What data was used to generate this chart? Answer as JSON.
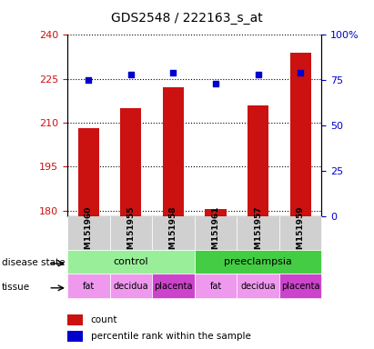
{
  "title": "GDS2548 / 222163_s_at",
  "samples": [
    "GSM151960",
    "GSM151955",
    "GSM151958",
    "GSM151961",
    "GSM151957",
    "GSM151959"
  ],
  "count_values": [
    208,
    215,
    222,
    180.5,
    216,
    234
  ],
  "percentile_values": [
    75,
    78,
    79,
    73,
    78,
    79
  ],
  "ylim_left": [
    178,
    240
  ],
  "ylim_right": [
    0,
    100
  ],
  "yticks_left": [
    180,
    195,
    210,
    225,
    240
  ],
  "yticks_right": [
    0,
    25,
    50,
    75,
    100
  ],
  "bar_color": "#cc1111",
  "dot_color": "#0000cc",
  "grid_color": "#000000",
  "background_plot": "#ffffff",
  "background_xticklabels": "#d0d0d0",
  "disease_state_colors": [
    "#99ee99",
    "#44cc44"
  ],
  "tissue_labels": [
    "fat",
    "decidua",
    "placenta",
    "fat",
    "decidua",
    "placenta"
  ],
  "tissue_colors": [
    "#ee99ee",
    "#ee99ee",
    "#cc44cc",
    "#ee99ee",
    "#ee99ee",
    "#cc44cc"
  ],
  "legend_items": [
    "count",
    "percentile rank within the sample"
  ],
  "bar_color_legend": "#cc1111",
  "dot_color_legend": "#0000cc",
  "left_tick_color": "#cc1111",
  "right_tick_color": "#0000cc"
}
